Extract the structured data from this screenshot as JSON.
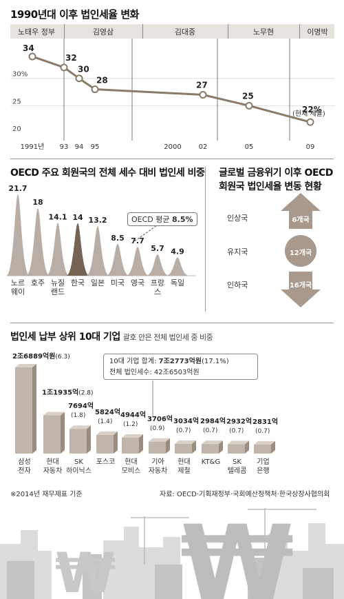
{
  "panel1": {
    "title": "1990년대 이후 법인세율 변화",
    "eras": [
      "노태우 정부",
      "김영삼",
      "김대중",
      "노무현",
      "이명박"
    ],
    "current_note": "(현재 세율)"
  },
  "panel2": {
    "title": "OECD 주요 회원국의 전체 세수 대비 법인세 비중",
    "avg_prefix": "OECD 평균 ",
    "avg_value": "8.5%"
  },
  "panel3": {
    "title_line1": "글로벌 금융위기 이후 OECD",
    "title_line2": "회원국 법인세율 변동 현황",
    "rows": [
      {
        "label": "인상국",
        "count": "6개국"
      },
      {
        "label": "유지국",
        "count": "12개국"
      },
      {
        "label": "인하국",
        "count": "16개국"
      }
    ]
  },
  "panel4": {
    "title": "법인세 납부 상위 10대 기업",
    "subtitle": "괄호 안은 전체 법인세 중 비중",
    "summary_line1_prefix": "10대 기업 합계: ",
    "summary_line1_value": "7조2773억원",
    "summary_line1_suffix": "(17.1%)",
    "summary_line2": "전체 법인세수: 42조6503억원"
  },
  "footer": {
    "note": "※2014년 재무제표 기준",
    "source": "자료: OECD·기획재정부·국회예산정책처·한국상장사협의회"
  },
  "colors": {
    "line": "#8a7a6a",
    "bell": "#b5aaa0",
    "bell_highlight": "#6e5c4a",
    "arrow": "#a8998c",
    "bar_front": "#bfb5ab",
    "bar_side": "#9a8d80",
    "bar_top": "#d9d1c8"
  },
  "chart_data": [
    {
      "type": "line",
      "title": "1990년대 이후 법인세율 변화",
      "x_tick_labels": [
        "1991년",
        "93",
        "94",
        "95",
        "2000",
        "02",
        "05",
        "09"
      ],
      "y_tick_labels": [
        "20",
        "25",
        "30%"
      ],
      "ylim": [
        20,
        35
      ],
      "points": [
        {
          "x": 1991,
          "y": 34,
          "label": "34"
        },
        {
          "x": 1993,
          "y": 32,
          "label": "32"
        },
        {
          "x": 1994,
          "y": 30,
          "label": "30"
        },
        {
          "x": 1995,
          "y": 28,
          "label": "28"
        },
        {
          "x": 2002,
          "y": 27,
          "label": "27"
        },
        {
          "x": 2005,
          "y": 25,
          "label": "25"
        },
        {
          "x": 2009,
          "y": 22,
          "label": "22%"
        }
      ]
    },
    {
      "type": "bar",
      "title": "OECD 주요 회원국의 전체 세수 대비 법인세 비중",
      "categories": [
        "노르웨이",
        "호주",
        "뉴질랜드",
        "한국",
        "일본",
        "미국",
        "영국",
        "프랑스",
        "독일"
      ],
      "category_lines": [
        [
          "노르",
          "웨이"
        ],
        [
          "호주"
        ],
        [
          "뉴질",
          "랜드"
        ],
        [
          "한국"
        ],
        [
          "일본"
        ],
        [
          "미국"
        ],
        [
          "영국"
        ],
        [
          "프랑",
          "스"
        ],
        [
          "독일"
        ]
      ],
      "values": [
        21.7,
        18,
        14.1,
        14,
        13.2,
        8.5,
        7.7,
        5.7,
        4.9
      ],
      "value_labels": [
        "21.7",
        "18",
        "14.1",
        "14",
        "13.2",
        "8.5",
        "7.7",
        "5.7",
        "4.9"
      ],
      "highlight": "한국",
      "average": 8.5
    },
    {
      "type": "bar",
      "title": "법인세 납부 상위 10대 기업",
      "categories": [
        "삼성전자",
        "현대자동차",
        "SK하이닉스",
        "포스코",
        "현대모비스",
        "기아자동차",
        "현대제철",
        "KT&G",
        "SK텔레콤",
        "기업은행"
      ],
      "category_lines": [
        [
          "삼성",
          "전자"
        ],
        [
          "현대",
          "자동차"
        ],
        [
          "SK",
          "하이닉스"
        ],
        [
          "포스코"
        ],
        [
          "현대",
          "모비스"
        ],
        [
          "기아",
          "자동차"
        ],
        [
          "현대",
          "제철"
        ],
        [
          "KT&G"
        ],
        [
          "SK",
          "텔레콤"
        ],
        [
          "기업",
          "은행"
        ]
      ],
      "values": [
        26889,
        11935,
        7694,
        5824,
        4944,
        3706,
        3034,
        2984,
        2932,
        2831
      ],
      "value_labels": [
        "2조6889억원",
        "1조1935억",
        "7694억",
        "5824억",
        "4944억",
        "3706억",
        "3034억",
        "2984억",
        "2932억",
        "2831억"
      ],
      "share_labels": [
        "(6.3)",
        "(2.8)",
        "(1.8)",
        "(1.4)",
        "(1.2)",
        "(0.9)",
        "(0.7)",
        "(0.7)",
        "(0.7)",
        "(0.7)"
      ]
    }
  ]
}
